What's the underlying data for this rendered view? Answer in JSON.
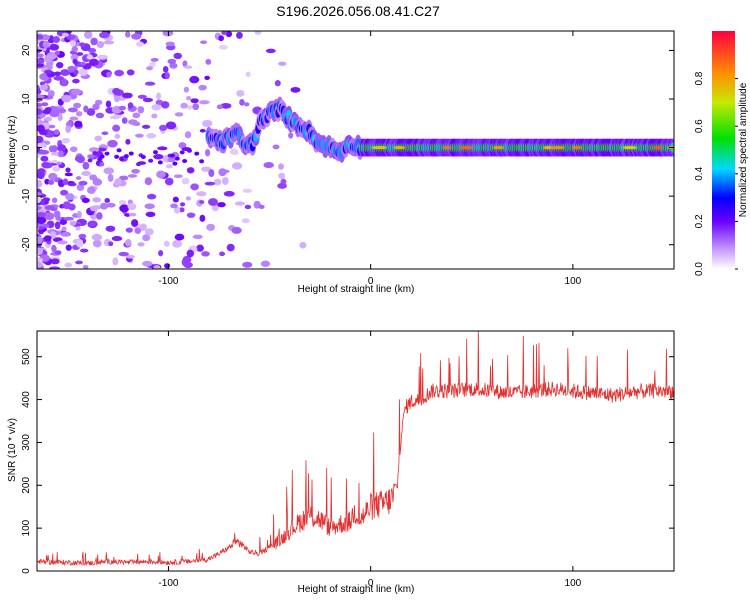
{
  "title": "S196.2026.056.08.41.C27",
  "chart_data": [
    {
      "type": "heatmap",
      "xlabel": "Height of straight line (km)",
      "ylabel": "Frequency (Hz)",
      "xlim": [
        -165,
        150
      ],
      "ylim": [
        -25,
        24
      ],
      "xticks": [
        -100,
        0,
        100
      ],
      "yticks": [
        -20,
        -10,
        0,
        10,
        20
      ],
      "colorbar": {
        "label": "Normalized spectral amplitude",
        "range": [
          0,
          1
        ],
        "ticks": [
          "0.0",
          "0.2",
          "0.4",
          "0.6",
          "0.8"
        ]
      },
      "ridge": [
        {
          "x": -80,
          "y": 2.5
        },
        {
          "x": -74,
          "y": 1
        },
        {
          "x": -70,
          "y": 2
        },
        {
          "x": -65,
          "y": 3
        },
        {
          "x": -62,
          "y": 0
        },
        {
          "x": -58,
          "y": 1
        },
        {
          "x": -55,
          "y": 5
        },
        {
          "x": -50,
          "y": 7
        },
        {
          "x": -45,
          "y": 8
        },
        {
          "x": -38,
          "y": 5
        },
        {
          "x": -32,
          "y": 4
        },
        {
          "x": -26,
          "y": 1
        },
        {
          "x": -20,
          "y": 0
        },
        {
          "x": -15,
          "y": -1
        },
        {
          "x": -10,
          "y": 1
        },
        {
          "x": -5,
          "y": 0
        },
        {
          "x": 0,
          "y": 0
        },
        {
          "x": 20,
          "y": 0
        },
        {
          "x": 50,
          "y": 0
        },
        {
          "x": 100,
          "y": 0
        },
        {
          "x": 150,
          "y": 0
        }
      ]
    },
    {
      "type": "line",
      "xlabel": "Height of straight line (km)",
      "ylabel": "SNR (10 * v/v)",
      "xlim": [
        -165,
        150
      ],
      "ylim": [
        0,
        560
      ],
      "xticks": [
        -100,
        0,
        100
      ],
      "yticks": [
        0,
        100,
        200,
        300,
        400,
        500
      ],
      "series": [
        {
          "name": "SNR",
          "color": "#e33030",
          "x": [
            -165,
            -150,
            -140,
            -130,
            -120,
            -110,
            -100,
            -90,
            -80,
            -75,
            -70,
            -65,
            -60,
            -55,
            -50,
            -45,
            -40,
            -35,
            -30,
            -25,
            -20,
            -15,
            -10,
            -8,
            -5,
            0,
            5,
            10,
            13,
            15,
            17,
            20,
            25,
            30,
            40,
            50,
            60,
            70,
            80,
            90,
            100,
            110,
            120,
            130,
            140,
            150
          ],
          "values": [
            22,
            20,
            18,
            22,
            20,
            22,
            20,
            22,
            28,
            40,
            55,
            68,
            45,
            40,
            55,
            70,
            95,
            115,
            130,
            120,
            100,
            110,
            115,
            140,
            120,
            150,
            155,
            165,
            190,
            310,
            380,
            395,
            400,
            420,
            420,
            425,
            420,
            415,
            420,
            425,
            420,
            415,
            410,
            418,
            420,
            420
          ]
        }
      ]
    }
  ]
}
